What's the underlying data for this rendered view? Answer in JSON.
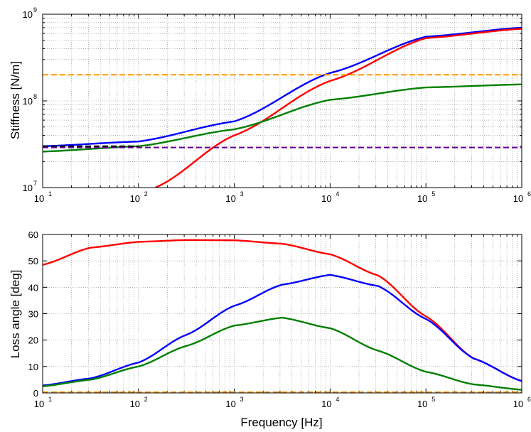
{
  "chart_data": [
    {
      "type": "line",
      "xscale": "log",
      "yscale": "log",
      "xlim": [
        10,
        1000000
      ],
      "ylim": [
        10000000,
        1000000000
      ],
      "xlabel": "",
      "ylabel": "Stiffness [N/m]",
      "x_tick_labels": [
        {
          "base": "10",
          "exp": "1"
        },
        {
          "base": "10",
          "exp": "2"
        },
        {
          "base": "10",
          "exp": "3"
        },
        {
          "base": "10",
          "exp": "4"
        },
        {
          "base": "10",
          "exp": "5"
        },
        {
          "base": "10",
          "exp": "6"
        }
      ],
      "y_tick_labels": [
        {
          "base": "10",
          "exp": "7"
        },
        {
          "base": "10",
          "exp": "8"
        },
        {
          "base": "10",
          "exp": "9"
        }
      ],
      "grid": true,
      "series": [
        {
          "color": "#0000ff",
          "style": "solid",
          "x": [
            10,
            100,
            1000,
            10000,
            100000,
            1000000
          ],
          "y": [
            30000000,
            34000000,
            58000000,
            210000000,
            550000000,
            700000000
          ]
        },
        {
          "color": "#ff0000",
          "style": "solid",
          "x": [
            150,
            1000,
            10000,
            100000,
            1000000
          ],
          "y": [
            10000000,
            40000000,
            170000000,
            530000000,
            680000000
          ]
        },
        {
          "color": "#008000",
          "style": "solid",
          "x": [
            10,
            100,
            1000,
            10000,
            100000,
            1000000
          ],
          "y": [
            26000000,
            30000000,
            47000000,
            103000000,
            143000000,
            155000000
          ]
        },
        {
          "color": "#ff9900",
          "style": "dashed",
          "x": [
            10,
            1000000
          ],
          "y": [
            200000000,
            200000000
          ]
        },
        {
          "color": "#660099",
          "style": "dashed",
          "x": [
            10,
            1000000
          ],
          "y": [
            29000000,
            29000000
          ]
        },
        {
          "color": "#000000",
          "style": "dashed",
          "x": [
            10,
            100
          ],
          "y": [
            30000000,
            30000000
          ]
        }
      ]
    },
    {
      "type": "line",
      "xscale": "log",
      "yscale": "linear",
      "xlim": [
        10,
        1000000
      ],
      "ylim": [
        0,
        60
      ],
      "xlabel": "Frequency [Hz]",
      "ylabel": "Loss angle [deg]",
      "x_tick_labels": [
        {
          "base": "10",
          "exp": "1"
        },
        {
          "base": "10",
          "exp": "2"
        },
        {
          "base": "10",
          "exp": "3"
        },
        {
          "base": "10",
          "exp": "4"
        },
        {
          "base": "10",
          "exp": "5"
        },
        {
          "base": "10",
          "exp": "6"
        }
      ],
      "y_tick_labels": [
        "0",
        "10",
        "20",
        "30",
        "40",
        "50",
        "60"
      ],
      "y_ticks": [
        0,
        10,
        20,
        30,
        40,
        50,
        60
      ],
      "grid": true,
      "series": [
        {
          "color": "#ff0000",
          "style": "solid",
          "x": [
            10,
            31.6,
            100,
            316,
            1000,
            3162,
            10000,
            31623,
            100000,
            316228,
            1000000
          ],
          "y": [
            48.5,
            55,
            57.2,
            57.9,
            57.8,
            56.5,
            52.5,
            44.5,
            29,
            13,
            4.5
          ]
        },
        {
          "color": "#0000ff",
          "style": "solid",
          "x": [
            10,
            31.6,
            100,
            316,
            1000,
            3162,
            10000,
            31623,
            100000,
            316228,
            1000000
          ],
          "y": [
            2.8,
            5.5,
            11.5,
            22,
            33,
            41,
            44.7,
            40.5,
            28,
            13,
            4.5
          ]
        },
        {
          "color": "#008000",
          "style": "solid",
          "x": [
            10,
            31.6,
            100,
            316,
            1000,
            3162,
            10000,
            31623,
            100000,
            316228,
            1000000
          ],
          "y": [
            2.5,
            5,
            10,
            17.8,
            25.5,
            28.5,
            24.5,
            16,
            8,
            3.2,
            1.2
          ]
        },
        {
          "color": "#ff9900",
          "style": "dashed",
          "x": [
            10,
            1000000
          ],
          "y": [
            0.3,
            0.3
          ]
        }
      ]
    }
  ]
}
